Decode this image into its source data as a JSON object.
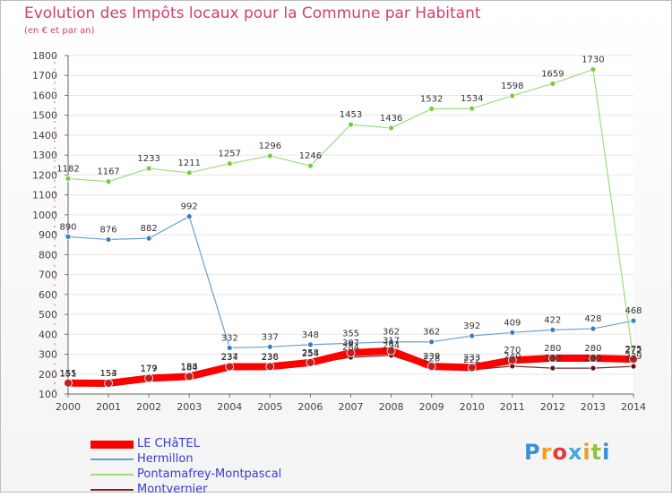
{
  "title": "Evolution des Impôts locaux pour la Commune par Habitant",
  "subtitle": "(en € et par an)",
  "brand": {
    "text": "Proxiti"
  },
  "chart_data": {
    "type": "line",
    "title": "Evolution des Impôts locaux pour la Commune par Habitant",
    "ylabel": "(en € et par an)",
    "x": [
      "2000",
      "2001",
      "2002",
      "2003",
      "2004",
      "2005",
      "2006",
      "2007",
      "2008",
      "2009",
      "2010",
      "2011",
      "2012",
      "2013",
      "2014"
    ],
    "ylim": [
      100,
      1800
    ],
    "yticks": [
      "100",
      "200",
      "300",
      "400",
      "500",
      "600",
      "700",
      "800",
      "900",
      "1000",
      "1100",
      "1200",
      "1300",
      "1400",
      "1500",
      "1600",
      "1700",
      "1800"
    ],
    "series": [
      {
        "name": "LE CHâTEL",
        "color": "#ff0000",
        "marker": "#c02020",
        "width": 8,
        "values": [
          155,
          154,
          179,
          188,
          237,
          238,
          258,
          307,
          317,
          239,
          233,
          270,
          280,
          280,
          275
        ]
      },
      {
        "name": "Hermillon",
        "color": "#6a9fd4",
        "marker": "#3a7ec0",
        "width": 1.2,
        "values": [
          890,
          876,
          882,
          992,
          332,
          337,
          348,
          355,
          362,
          362,
          392,
          409,
          422,
          428,
          468
        ]
      },
      {
        "name": "Pontamafrey-Montpascal",
        "color": "#9edc7a",
        "marker": "#77cc44",
        "width": 1.2,
        "values": [
          1182,
          1167,
          1233,
          1211,
          1257,
          1296,
          1246,
          1453,
          1436,
          1532,
          1534,
          1598,
          1659,
          1730,
          272
        ]
      },
      {
        "name": "Montvernier",
        "color": "#7a2a2a",
        "marker": "#5a1515",
        "width": 1.2,
        "values": [
          151,
          153,
          177,
          184,
          234,
          236,
          254,
          284,
          294,
          228,
          222,
          240,
          230,
          230,
          239
        ]
      }
    ]
  }
}
